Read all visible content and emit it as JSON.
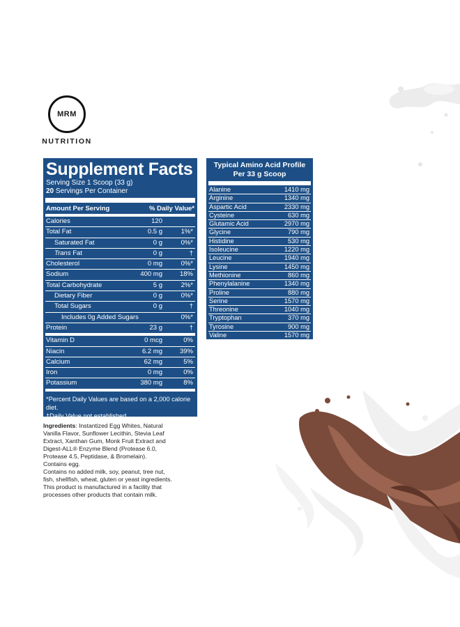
{
  "logo": {
    "mark": "MRM",
    "word": "NUTRITION"
  },
  "supplement_facts": {
    "title": "Supplement Facts",
    "serving_size": "Serving Size 1 Scoop (33 g)",
    "servings_count": "20",
    "servings_text": " Servings Per Container",
    "header_amount": "Amount Per Serving",
    "header_dv": "% Daily Value*",
    "rows": [
      {
        "name": "Calories",
        "amount": "120",
        "dv": ""
      },
      {
        "name": "Total Fat",
        "amount": "0.5 g",
        "dv": "1%*"
      },
      {
        "name": "Saturated Fat",
        "amount": "0 g",
        "dv": "0%*"
      },
      {
        "name": "Trans",
        "name_suffix": " Fat",
        "amount": "0 g",
        "dv": "†"
      },
      {
        "name": "Cholesterol",
        "amount": "0 mg",
        "dv": "0%*"
      },
      {
        "name": "Sodium",
        "amount": "400 mg",
        "dv": "18%"
      },
      {
        "name": "Total Carbohydrate",
        "amount": "5 g",
        "dv": "2%*"
      },
      {
        "name": "Dietary Fiber",
        "amount": "0 g",
        "dv": "0%*"
      },
      {
        "name": "Total Sugars",
        "amount": "0 g",
        "dv": "†"
      },
      {
        "name": "Includes 0g Added Sugars",
        "amount": "",
        "dv": "0%*"
      },
      {
        "name": "Protein",
        "amount": "23 g",
        "dv": "†"
      },
      {
        "name": "Vitamin D",
        "amount": "0 mcg",
        "dv": "0%"
      },
      {
        "name": "Niacin",
        "amount": "6.2 mg",
        "dv": "39%"
      },
      {
        "name": "Calcium",
        "amount": "62 mg",
        "dv": "5%"
      },
      {
        "name": "Iron",
        "amount": "0 mg",
        "dv": "0%"
      },
      {
        "name": "Potassium",
        "amount": "380 mg",
        "dv": "8%"
      }
    ],
    "footnote_1": "*Percent Daily Values are based on a 2,000 calorie diet.",
    "footnote_2": "†Daily Value not established."
  },
  "amino_profile": {
    "title_1": "Typical Amino Acid Profile",
    "title_2": "Per 33 g Scoop",
    "rows": [
      {
        "name": "Alanine",
        "amount": "1410 mg"
      },
      {
        "name": "Arginine",
        "amount": "1340 mg"
      },
      {
        "name": "Aspartic Acid",
        "amount": "2330 mg"
      },
      {
        "name": "Cysteine",
        "amount": "630 mg"
      },
      {
        "name": "Glutamic Acid",
        "amount": "2970 mg"
      },
      {
        "name": "Glycine",
        "amount": "790 mg"
      },
      {
        "name": "Histidine",
        "amount": "530 mg"
      },
      {
        "name": "Isoleucine",
        "amount": "1220 mg"
      },
      {
        "name": "Leucine",
        "amount": "1940 mg"
      },
      {
        "name": "Lysine",
        "amount": "1450 mg"
      },
      {
        "name": "Methionine",
        "amount": "860 mg"
      },
      {
        "name": "Phenylalanine",
        "amount": "1340 mg"
      },
      {
        "name": "Proline",
        "amount": "880 mg"
      },
      {
        "name": "Serine",
        "amount": "1570 mg"
      },
      {
        "name": "Threonine",
        "amount": "1040 mg"
      },
      {
        "name": "Tryptophan",
        "amount": "370 mg"
      },
      {
        "name": "Tyrosine",
        "amount": "900 mg"
      },
      {
        "name": "Valine",
        "amount": "1570 mg"
      }
    ]
  },
  "ingredients": {
    "label": "Ingredients",
    "text": ": Instantized Egg Whites, Natural Vanilla Flavor, Sunflower Lecithin, Stevia Leaf Extract, Xanthan Gum, Monk Fruit Extract and Digest-ALL® Enzyme Blend (Protease 6.0, Protease 4.5, Peptidase, & Bromelain).",
    "contains": "Contains egg.",
    "allergen": "Contains no added milk, soy, peanut, tree nut, fish, shellfish, wheat, gluten or yeast ingredients. This product is manufactured in a facility that processes other products that contain milk."
  },
  "colors": {
    "panel": "#1d4f86",
    "milk": "#f2f2f2",
    "chocolate": "#7a4a3a"
  }
}
